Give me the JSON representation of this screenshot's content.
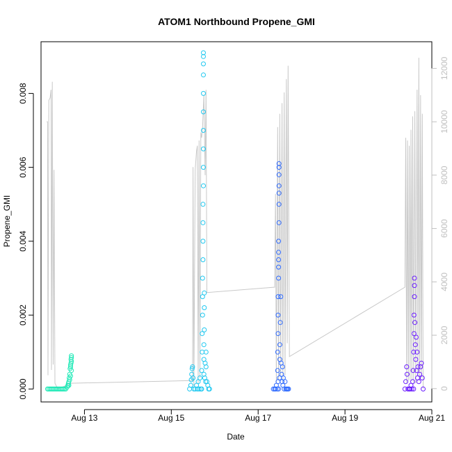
{
  "chart_data": {
    "type": "scatter",
    "title": "ATOM1 Northbound Propene_GMI",
    "xlabel": "Date",
    "ylabel": "Propene_GMI",
    "xlim_days": [
      12.0,
      21.0
    ],
    "ylim": [
      -0.00035,
      0.0094
    ],
    "y2lim": [
      -500,
      13000
    ],
    "x_ticks": [
      {
        "day": 13,
        "label": "Aug 13"
      },
      {
        "day": 15,
        "label": "Aug 15"
      },
      {
        "day": 17,
        "label": "Aug 17"
      },
      {
        "day": 19,
        "label": "Aug 19"
      },
      {
        "day": 21,
        "label": "Aug 21"
      }
    ],
    "y_ticks": [
      {
        "value": 0.0,
        "label": "0.000"
      },
      {
        "value": 0.002,
        "label": "0.002"
      },
      {
        "value": 0.004,
        "label": "0.004"
      },
      {
        "value": 0.006,
        "label": "0.006"
      },
      {
        "value": 0.008,
        "label": "0.008"
      }
    ],
    "y2_ticks": [
      {
        "value": 0,
        "label": "0"
      },
      {
        "value": 2000,
        "label": "2000"
      },
      {
        "value": 4000,
        "label": "4000"
      },
      {
        "value": 6000,
        "label": "6000"
      },
      {
        "value": 8000,
        "label": "8000"
      },
      {
        "value": 10000,
        "label": "10000"
      },
      {
        "value": 12000,
        "label": "12000"
      }
    ],
    "grid": false,
    "secondary_line_color": "#c8c8c8",
    "series": [
      {
        "color": "#1de9b6",
        "points": [
          [
            12.15,
            0
          ],
          [
            12.18,
            0
          ],
          [
            12.21,
            0
          ],
          [
            12.24,
            0
          ],
          [
            12.27,
            0
          ],
          [
            12.3,
            0
          ],
          [
            12.33,
            0
          ],
          [
            12.36,
            0
          ],
          [
            12.39,
            0
          ],
          [
            12.42,
            0
          ],
          [
            12.45,
            0
          ],
          [
            12.48,
            0
          ],
          [
            12.51,
            0
          ],
          [
            12.54,
            0
          ],
          [
            12.57,
            0
          ],
          [
            12.6,
            5e-05
          ],
          [
            12.62,
            0.0001
          ],
          [
            12.63,
            0.00015
          ],
          [
            12.64,
            0.0002
          ],
          [
            12.65,
            0.0003
          ],
          [
            12.66,
            0.0004
          ],
          [
            12.67,
            0.00055
          ],
          [
            12.68,
            0.0006
          ],
          [
            12.68,
            0.00065
          ],
          [
            12.69,
            0.0007
          ],
          [
            12.69,
            0.0008
          ],
          [
            12.7,
            0.00075
          ],
          [
            12.7,
            0.00085
          ],
          [
            12.7,
            0.0009
          ],
          [
            12.7,
            0.0005
          ],
          [
            12.68,
            0.00035
          ],
          [
            12.66,
            0.00025
          ],
          [
            12.64,
            0.0001
          ]
        ]
      },
      {
        "color": "#1ec8f0",
        "points": [
          [
            15.42,
            0
          ],
          [
            15.45,
            0.0001
          ],
          [
            15.46,
            0.00025
          ],
          [
            15.47,
            0.0004
          ],
          [
            15.48,
            0.00055
          ],
          [
            15.49,
            0.0006
          ],
          [
            15.5,
            0.0003
          ],
          [
            15.52,
            0
          ],
          [
            15.55,
            0
          ],
          [
            15.58,
            0.0001
          ],
          [
            15.6,
            0
          ],
          [
            15.62,
            0.0002
          ],
          [
            15.64,
            0
          ],
          [
            15.66,
            0.0003
          ],
          [
            15.68,
            0
          ],
          [
            15.7,
            0
          ],
          [
            15.7,
            0.0005
          ],
          [
            15.71,
            0.001
          ],
          [
            15.71,
            0.0015
          ],
          [
            15.72,
            0.002
          ],
          [
            15.72,
            0.0025
          ],
          [
            15.72,
            0.003
          ],
          [
            15.73,
            0.0035
          ],
          [
            15.73,
            0.004
          ],
          [
            15.73,
            0.0045
          ],
          [
            15.73,
            0.005
          ],
          [
            15.74,
            0.0055
          ],
          [
            15.74,
            0.006
          ],
          [
            15.74,
            0.0065
          ],
          [
            15.74,
            0.007
          ],
          [
            15.74,
            0.0075
          ],
          [
            15.74,
            0.008
          ],
          [
            15.74,
            0.0085
          ],
          [
            15.74,
            0.0088
          ],
          [
            15.74,
            0.009
          ],
          [
            15.74,
            0.0091
          ],
          [
            15.75,
            0.0004
          ],
          [
            15.75,
            0.0008
          ],
          [
            15.75,
            0.0012
          ],
          [
            15.76,
            0.0016
          ],
          [
            15.76,
            0.0022
          ],
          [
            15.76,
            0.0026
          ],
          [
            15.77,
            0.0003
          ],
          [
            15.78,
            0.0007
          ],
          [
            15.79,
            0.0002
          ],
          [
            15.8,
            0.0006
          ],
          [
            15.8,
            0.001
          ],
          [
            15.82,
            0.0002
          ],
          [
            15.84,
            0.0001
          ],
          [
            15.86,
            0
          ],
          [
            15.88,
            0
          ]
        ]
      },
      {
        "color": "#2f6bff",
        "points": [
          [
            17.35,
            0
          ],
          [
            17.38,
            0
          ],
          [
            17.4,
            0
          ],
          [
            17.42,
            0.0001
          ],
          [
            17.44,
            0
          ],
          [
            17.46,
            0.0002
          ],
          [
            17.47,
            0
          ],
          [
            17.45,
            0.0005
          ],
          [
            17.45,
            0.001
          ],
          [
            17.46,
            0.0015
          ],
          [
            17.46,
            0.002
          ],
          [
            17.46,
            0.0025
          ],
          [
            17.47,
            0.003
          ],
          [
            17.47,
            0.0033
          ],
          [
            17.47,
            0.0035
          ],
          [
            17.47,
            0.0037
          ],
          [
            17.47,
            0.004
          ],
          [
            17.48,
            0.0045
          ],
          [
            17.48,
            0.005
          ],
          [
            17.48,
            0.0053
          ],
          [
            17.48,
            0.0055
          ],
          [
            17.48,
            0.0058
          ],
          [
            17.48,
            0.006
          ],
          [
            17.48,
            0.0061
          ],
          [
            17.49,
            0.0003
          ],
          [
            17.5,
            0.0008
          ],
          [
            17.5,
            0.0012
          ],
          [
            17.51,
            0.0018
          ],
          [
            17.52,
            0.0025
          ],
          [
            17.53,
            0.0007
          ],
          [
            17.54,
            0.0004
          ],
          [
            17.55,
            0.0002
          ],
          [
            17.56,
            0.0006
          ],
          [
            17.57,
            0.0001
          ],
          [
            17.58,
            0.0003
          ],
          [
            17.6,
            0
          ],
          [
            17.62,
            0.0002
          ],
          [
            17.64,
            0
          ],
          [
            17.66,
            0
          ],
          [
            17.68,
            0
          ],
          [
            17.7,
            0
          ]
        ]
      },
      {
        "color": "#6a1bff",
        "points": [
          [
            20.38,
            0
          ],
          [
            20.4,
            0.0002
          ],
          [
            20.42,
            0.0006
          ],
          [
            20.43,
            0.0004
          ],
          [
            20.45,
            0
          ],
          [
            20.48,
            0
          ],
          [
            20.5,
            0
          ],
          [
            20.52,
            0.0001
          ],
          [
            20.54,
            0
          ],
          [
            20.56,
            0.0002
          ],
          [
            20.58,
            0
          ],
          [
            20.57,
            0.0005
          ],
          [
            20.58,
            0.001
          ],
          [
            20.59,
            0.0015
          ],
          [
            20.59,
            0.002
          ],
          [
            20.6,
            0.0025
          ],
          [
            20.6,
            0.0028
          ],
          [
            20.6,
            0.003
          ],
          [
            20.61,
            0.0018
          ],
          [
            20.62,
            0.0012
          ],
          [
            20.63,
            0.0008
          ],
          [
            20.64,
            0.0014
          ],
          [
            20.65,
            0.0005
          ],
          [
            20.66,
            0.001
          ],
          [
            20.67,
            0.0003
          ],
          [
            20.68,
            0.0006
          ],
          [
            20.7,
            0.0002
          ],
          [
            20.72,
            0.0004
          ],
          [
            20.74,
            0.0006
          ],
          [
            20.76,
            0.0007
          ],
          [
            20.78,
            0.0003
          ],
          [
            20.8,
            0
          ]
        ]
      }
    ],
    "secondary_line": [
      [
        12.13,
        10000
      ],
      [
        12.15,
        10000
      ],
      [
        12.16,
        500
      ],
      [
        12.18,
        10800
      ],
      [
        12.21,
        10900
      ],
      [
        12.23,
        11200
      ],
      [
        12.24,
        700
      ],
      [
        12.26,
        11500
      ],
      [
        12.28,
        900
      ],
      [
        12.3,
        8200
      ],
      [
        12.32,
        200
      ],
      [
        12.35,
        100
      ],
      [
        12.4,
        0
      ],
      [
        12.7,
        200
      ],
      [
        15.49,
        300
      ],
      [
        15.5,
        8300
      ],
      [
        15.52,
        100
      ],
      [
        15.55,
        8200
      ],
      [
        15.58,
        8900
      ],
      [
        15.6,
        9100
      ],
      [
        15.62,
        200
      ],
      [
        15.64,
        9300
      ],
      [
        15.66,
        400
      ],
      [
        15.68,
        9600
      ],
      [
        15.7,
        9400
      ],
      [
        15.72,
        9800
      ],
      [
        15.75,
        11000
      ],
      [
        15.78,
        8000
      ],
      [
        15.8,
        11200
      ],
      [
        15.82,
        3600
      ],
      [
        17.38,
        3800
      ],
      [
        17.4,
        7300
      ],
      [
        17.42,
        200
      ],
      [
        17.45,
        9800
      ],
      [
        17.47,
        300
      ],
      [
        17.5,
        10300
      ],
      [
        17.52,
        500
      ],
      [
        17.55,
        10700
      ],
      [
        17.57,
        200
      ],
      [
        17.6,
        11100
      ],
      [
        17.62,
        500
      ],
      [
        17.65,
        11600
      ],
      [
        17.67,
        1700
      ],
      [
        17.69,
        12100
      ],
      [
        17.72,
        1200
      ],
      [
        20.38,
        3800
      ],
      [
        20.4,
        9400
      ],
      [
        20.42,
        200
      ],
      [
        20.44,
        9300
      ],
      [
        20.46,
        300
      ],
      [
        20.48,
        9100
      ],
      [
        20.5,
        300
      ],
      [
        20.52,
        9700
      ],
      [
        20.54,
        300
      ],
      [
        20.56,
        10200
      ],
      [
        20.58,
        200
      ],
      [
        20.61,
        10400
      ],
      [
        20.63,
        200
      ],
      [
        20.66,
        11200
      ],
      [
        20.68,
        500
      ],
      [
        20.7,
        12400
      ],
      [
        20.72,
        300
      ],
      [
        20.74,
        11000
      ],
      [
        20.76,
        400
      ],
      [
        20.78,
        10300
      ],
      [
        20.8,
        0
      ]
    ]
  }
}
